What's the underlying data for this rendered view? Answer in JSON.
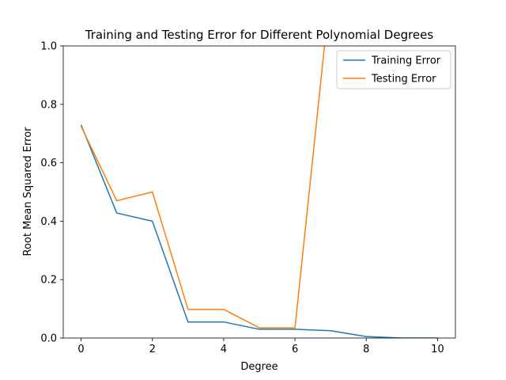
{
  "chart_data": {
    "type": "line",
    "title": "Training and Testing Error for Different Polynomial Degrees",
    "xlabel": "Degree",
    "ylabel": "Root Mean Squared Error",
    "xlim": [
      -0.5,
      10.5
    ],
    "ylim": [
      0,
      1.0
    ],
    "xticks": [
      0,
      2,
      4,
      6,
      8,
      10
    ],
    "yticks": [
      0.0,
      0.2,
      0.4,
      0.6,
      0.8,
      1.0
    ],
    "xtick_labels": [
      "0",
      "2",
      "4",
      "6",
      "8",
      "10"
    ],
    "ytick_labels": [
      "0.0",
      "0.2",
      "0.4",
      "0.6",
      "0.8",
      "1.0"
    ],
    "grid": false,
    "legend_position": "top-right",
    "x": [
      0,
      1,
      2,
      3,
      4,
      5,
      6,
      7,
      8,
      9,
      10
    ],
    "series": [
      {
        "name": "Training Error",
        "color": "#1f77b4",
        "values": [
          0.73,
          0.428,
          0.4,
          0.055,
          0.055,
          0.03,
          0.03,
          0.025,
          0.005,
          0.0,
          0.0
        ]
      },
      {
        "name": "Testing Error",
        "color": "#ff7f0e",
        "values": [
          0.725,
          0.47,
          0.5,
          0.098,
          0.098,
          0.035,
          0.035,
          1.2,
          null,
          null,
          null
        ]
      }
    ]
  }
}
